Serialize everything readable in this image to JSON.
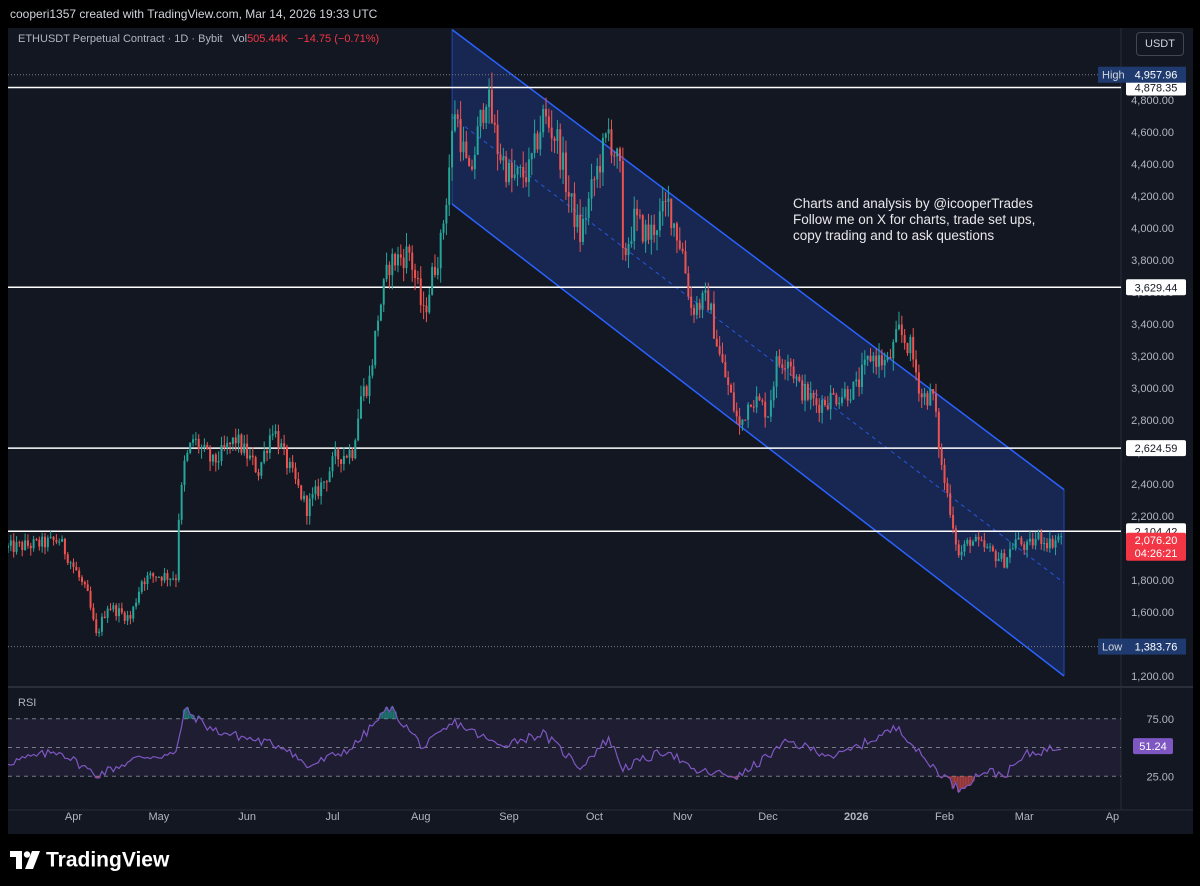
{
  "header": {
    "credit": "cooperi1357 created with TradingView.com, Mar 14, 2026 19:33 UTC"
  },
  "legend": {
    "symbol": "ETHUSDT Perpetual Contract · 1D · Bybit",
    "vol_label": "Vol",
    "vol_value": "505.44K",
    "change": "−14.75 (−0.71%)"
  },
  "currency_button": "USDT",
  "annotation": [
    "Charts and analysis by @icooperTrades",
    "Follow me on X for charts, trade set ups,",
    "copy trading and to ask questions"
  ],
  "rsi_label": "RSI",
  "footer": {
    "brand": "TradingView"
  },
  "colors": {
    "background": "#131722",
    "up": "#26a69a",
    "down": "#ef5350",
    "channel": "#2962ff",
    "rsi": "#7e57c2",
    "price_tag": "#f23645"
  },
  "chart_data": {
    "type": "candlestick",
    "symbol": "ETHUSDT",
    "timeframe": "1D",
    "y_ticks": [
      "1,200.00",
      "1,400.00",
      "1,600.00",
      "1,800.00",
      "2,000.00",
      "2,200.00",
      "2,400.00",
      "2,600.00",
      "2,800.00",
      "3,000.00",
      "3,200.00",
      "3,400.00",
      "3,600.00",
      "3,800.00",
      "4,000.00",
      "4,200.00",
      "4,400.00",
      "4,600.00",
      "4,800.00"
    ],
    "ylim": [
      1150,
      5250
    ],
    "x_tick_labels": [
      "Apr",
      "May",
      "Jun",
      "Jul",
      "Aug",
      "Sep",
      "Oct",
      "Nov",
      "Dec",
      "2026",
      "Feb",
      "Mar",
      "Ap"
    ],
    "x_tick_dates": [
      "2025-04-01",
      "2025-05-01",
      "2025-06-01",
      "2025-07-01",
      "2025-08-01",
      "2025-09-01",
      "2025-10-01",
      "2025-11-01",
      "2025-12-01",
      "2026-01-01",
      "2026-02-01",
      "2026-03-01",
      "2026-04-01"
    ],
    "xlim": [
      "2025-03-09",
      "2026-04-04"
    ],
    "high": {
      "label": "High",
      "value": "4,957.96"
    },
    "low": {
      "label": "Low",
      "value": "1,383.76"
    },
    "horizontal_levels": [
      "4,878.35",
      "3,629.44",
      "2,624.59",
      "2,104.42"
    ],
    "current_price": {
      "value": "2,076.20",
      "countdown": "04:26:21"
    },
    "channel": {
      "upper": [
        [
          "2025-08-12",
          5240
        ],
        [
          "2026-03-15",
          2365
        ]
      ],
      "lower": [
        [
          "2025-08-12",
          4150
        ],
        [
          "2026-03-15",
          1200
        ]
      ],
      "mid_dashed": [
        [
          "2025-08-12",
          4695
        ],
        [
          "2026-03-15",
          1782
        ]
      ]
    },
    "price_path": [
      [
        "2025-03-09",
        2000
      ],
      [
        "2025-03-22",
        2030
      ],
      [
        "2025-03-27",
        2050
      ],
      [
        "2025-04-02",
        1850
      ],
      [
        "2025-04-06",
        1700
      ],
      [
        "2025-04-09",
        1450
      ],
      [
        "2025-04-13",
        1640
      ],
      [
        "2025-04-21",
        1560
      ],
      [
        "2025-04-25",
        1800
      ],
      [
        "2025-04-30",
        1830
      ],
      [
        "2025-05-07",
        1820
      ],
      [
        "2025-05-08",
        2200
      ],
      [
        "2025-05-10",
        2520
      ],
      [
        "2025-05-13",
        2680
      ],
      [
        "2025-05-20",
        2530
      ],
      [
        "2025-05-28",
        2680
      ],
      [
        "2025-06-05",
        2480
      ],
      [
        "2025-06-10",
        2760
      ],
      [
        "2025-06-15",
        2530
      ],
      [
        "2025-06-22",
        2250
      ],
      [
        "2025-06-28",
        2420
      ],
      [
        "2025-07-02",
        2560
      ],
      [
        "2025-07-08",
        2610
      ],
      [
        "2025-07-11",
        2950
      ],
      [
        "2025-07-14",
        3050
      ],
      [
        "2025-07-17",
        3450
      ],
      [
        "2025-07-21",
        3780
      ],
      [
        "2025-07-28",
        3850
      ],
      [
        "2025-08-02",
        3450
      ],
      [
        "2025-08-05",
        3700
      ],
      [
        "2025-08-08",
        3900
      ],
      [
        "2025-08-10",
        4200
      ],
      [
        "2025-08-13",
        4750
      ],
      [
        "2025-08-18",
        4300
      ],
      [
        "2025-08-24",
        4850
      ],
      [
        "2025-08-28",
        4500
      ],
      [
        "2025-09-02",
        4300
      ],
      [
        "2025-09-08",
        4350
      ],
      [
        "2025-09-13",
        4700
      ],
      [
        "2025-09-18",
        4550
      ],
      [
        "2025-09-22",
        4200
      ],
      [
        "2025-09-26",
        3950
      ],
      [
        "2025-10-01",
        4300
      ],
      [
        "2025-10-06",
        4600
      ],
      [
        "2025-10-10",
        4350
      ],
      [
        "2025-10-11",
        3800
      ],
      [
        "2025-10-15",
        4050
      ],
      [
        "2025-10-20",
        3950
      ],
      [
        "2025-10-27",
        4150
      ],
      [
        "2025-11-01",
        3850
      ],
      [
        "2025-11-04",
        3500
      ],
      [
        "2025-11-10",
        3550
      ],
      [
        "2025-11-14",
        3200
      ],
      [
        "2025-11-21",
        2750
      ],
      [
        "2025-11-25",
        2950
      ],
      [
        "2025-12-01",
        2850
      ],
      [
        "2025-12-04",
        3150
      ],
      [
        "2025-12-08",
        3200
      ],
      [
        "2025-12-12",
        3000
      ],
      [
        "2025-12-18",
        2900
      ],
      [
        "2025-12-25",
        2950
      ],
      [
        "2026-01-01",
        3000
      ],
      [
        "2026-01-06",
        3200
      ],
      [
        "2026-01-12",
        3150
      ],
      [
        "2026-01-16",
        3350
      ],
      [
        "2026-01-20",
        3250
      ],
      [
        "2026-01-24",
        2950
      ],
      [
        "2026-01-28",
        2950
      ],
      [
        "2026-01-31",
        2500
      ],
      [
        "2026-02-03",
        2250
      ],
      [
        "2026-02-06",
        1950
      ],
      [
        "2026-02-10",
        2050
      ],
      [
        "2026-02-15",
        2000
      ],
      [
        "2026-02-22",
        1920
      ],
      [
        "2026-02-26",
        2050
      ],
      [
        "2026-03-02",
        2000
      ],
      [
        "2026-03-06",
        2070
      ],
      [
        "2026-03-10",
        2030
      ],
      [
        "2026-03-14",
        2076
      ]
    ],
    "rsi": {
      "levels": [
        "75.00",
        "25.00"
      ],
      "current": "51.24",
      "ylim": [
        0,
        100
      ],
      "path": [
        [
          "2025-03-09",
          37
        ],
        [
          "2025-03-27",
          47
        ],
        [
          "2025-04-09",
          26
        ],
        [
          "2025-04-25",
          42
        ],
        [
          "2025-05-07",
          44
        ],
        [
          "2025-05-10",
          83
        ],
        [
          "2025-05-20",
          65
        ],
        [
          "2025-06-15",
          50
        ],
        [
          "2025-06-22",
          33
        ],
        [
          "2025-07-08",
          50
        ],
        [
          "2025-07-21",
          85
        ],
        [
          "2025-08-02",
          50
        ],
        [
          "2025-08-13",
          72
        ],
        [
          "2025-08-28",
          52
        ],
        [
          "2025-09-13",
          62
        ],
        [
          "2025-09-26",
          33
        ],
        [
          "2025-10-06",
          58
        ],
        [
          "2025-10-11",
          32
        ],
        [
          "2025-10-27",
          48
        ],
        [
          "2025-11-04",
          30
        ],
        [
          "2025-11-21",
          25
        ],
        [
          "2025-12-08",
          55
        ],
        [
          "2025-12-25",
          42
        ],
        [
          "2026-01-16",
          68
        ],
        [
          "2026-01-24",
          42
        ],
        [
          "2026-02-06",
          14
        ],
        [
          "2026-02-15",
          30
        ],
        [
          "2026-02-22",
          26
        ],
        [
          "2026-03-02",
          44
        ],
        [
          "2026-03-14",
          51
        ]
      ]
    }
  }
}
